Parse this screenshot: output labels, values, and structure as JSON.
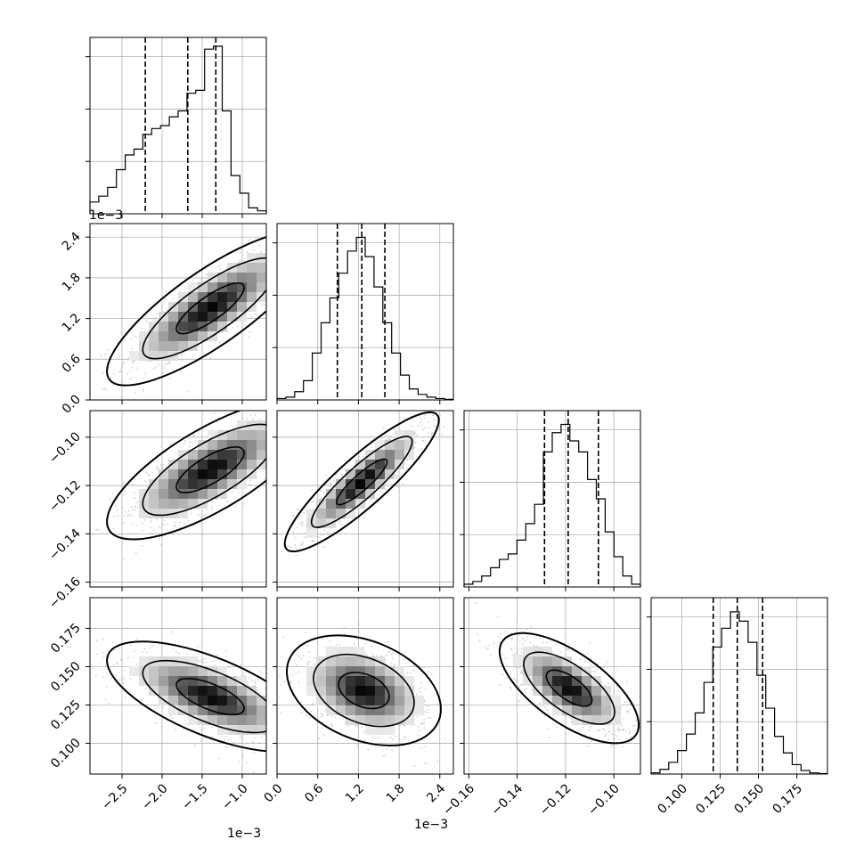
{
  "figure": {
    "offset_label_1": "1e−3",
    "offset_label_2": "1e−3",
    "offset_label_3": "1e−3"
  },
  "chart_data": {
    "type": "corner",
    "parameters": [
      {
        "index": 0,
        "range": [
          -0.0029,
          -0.0007
        ],
        "tick_values": [
          -0.0025,
          -0.002,
          -0.0015,
          -0.001
        ],
        "tick_labels": [
          "−2.5",
          "−2.0",
          "−1.5",
          "−1.0"
        ],
        "offset": "1e−3",
        "quantiles": [
          -0.00221,
          -0.00168,
          -0.00133
        ],
        "histogram": {
          "bin_edges": [
            -0.0029,
            -0.00279,
            -0.00268,
            -0.00257,
            -0.00246,
            -0.00235,
            -0.00224,
            -0.00213,
            -0.00202,
            -0.00191,
            -0.0018,
            -0.00169,
            -0.00158,
            -0.00147,
            -0.00136,
            -0.00125,
            -0.00114,
            -0.00103,
            -0.00092,
            -0.00081,
            -0.0007
          ],
          "counts": [
            40,
            60,
            90,
            150,
            200,
            220,
            270,
            290,
            300,
            330,
            350,
            410,
            420,
            560,
            570,
            350,
            130,
            70,
            20,
            10
          ],
          "ylim": [
            0,
            600
          ]
        }
      },
      {
        "index": 1,
        "range": [
          0.0,
          0.0026
        ],
        "tick_values": [
          0.0,
          0.0006,
          0.0012,
          0.0018,
          0.0024
        ],
        "tick_labels": [
          "0.0",
          "0.6",
          "1.2",
          "1.8",
          "2.4"
        ],
        "offset": "1e−3",
        "quantiles": [
          0.00089,
          0.00125,
          0.00159
        ],
        "histogram": {
          "bin_edges": [
            0.0,
            0.00013,
            0.00026,
            0.00039,
            0.00052,
            0.00065,
            0.00078,
            0.00091,
            0.00104,
            0.00117,
            0.0013,
            0.00143,
            0.00156,
            0.00169,
            0.00182,
            0.00195,
            0.00208,
            0.00221,
            0.00234,
            0.00247,
            0.0026
          ],
          "counts": [
            5,
            10,
            30,
            70,
            170,
            280,
            370,
            460,
            540,
            590,
            520,
            410,
            280,
            170,
            90,
            40,
            20,
            10,
            5,
            2
          ],
          "ylim": [
            0,
            640
          ]
        }
      },
      {
        "index": 2,
        "range": [
          -0.162,
          -0.089
        ],
        "tick_values": [
          -0.16,
          -0.14,
          -0.12,
          -0.1
        ],
        "tick_labels": [
          "−0.16",
          "−0.14",
          "−0.12",
          "−0.10"
        ],
        "quantiles": [
          -0.1287,
          -0.1189,
          -0.1064
        ],
        "histogram": {
          "bin_edges": [
            -0.162,
            -0.15835,
            -0.1547,
            -0.15105,
            -0.1474,
            -0.14375,
            -0.1401,
            -0.13645,
            -0.1328,
            -0.12915,
            -0.1255,
            -0.12185,
            -0.1182,
            -0.11455,
            -0.1109,
            -0.10725,
            -0.1036,
            -0.09995,
            -0.0963,
            -0.09265,
            -0.089
          ],
          "counts": [
            10,
            20,
            40,
            70,
            100,
            120,
            170,
            230,
            300,
            490,
            560,
            590,
            530,
            490,
            390,
            320,
            200,
            110,
            40,
            10
          ],
          "ylim": [
            0,
            640
          ]
        }
      },
      {
        "index": 3,
        "range": [
          0.08,
          0.195
        ],
        "tick_values": [
          0.1,
          0.125,
          0.15,
          0.175
        ],
        "tick_labels": [
          "0.100",
          "0.125",
          "0.150",
          "0.175"
        ],
        "quantiles": [
          0.1205,
          0.1362,
          0.1527
        ],
        "histogram": {
          "bin_edges": [
            0.08,
            0.08575,
            0.0915,
            0.09725,
            0.103,
            0.10875,
            0.1145,
            0.12025,
            0.126,
            0.13175,
            0.1375,
            0.14325,
            0.149,
            0.15475,
            0.1605,
            0.16625,
            0.172,
            0.17775,
            0.1835,
            0.18925,
            0.195
          ],
          "counts": [
            5,
            20,
            50,
            100,
            170,
            260,
            390,
            540,
            620,
            690,
            650,
            560,
            420,
            280,
            160,
            90,
            40,
            15,
            5,
            2
          ],
          "ylim": [
            0,
            750
          ]
        }
      }
    ],
    "pairs": [
      {
        "x": 0,
        "y": 1,
        "peak": [
          -0.0014,
          0.00135
        ],
        "cov": [
          [
            1.8e-07,
            1.3e-07
          ],
          [
            1.3e-07,
            1.4e-07
          ]
        ]
      },
      {
        "x": 0,
        "y": 2,
        "peak": [
          -0.0014,
          -0.1135
        ],
        "cov": [
          [
            1.8e-07,
            3e-06
          ],
          [
            3e-06,
            9e-05
          ]
        ]
      },
      {
        "x": 1,
        "y": 2,
        "peak": [
          0.00125,
          -0.1185
        ],
        "cov": [
          [
            1.4e-07,
            3.15e-06
          ],
          [
            3.15e-06,
            9e-05
          ]
        ]
      },
      {
        "x": 0,
        "y": 3,
        "peak": [
          -0.0014,
          0.1305
        ],
        "cov": [
          [
            1.8e-07,
            -3.3e-06
          ],
          [
            -3.3e-06,
            0.00014
          ]
        ]
      },
      {
        "x": 1,
        "y": 3,
        "peak": [
          0.00128,
          0.1345
        ],
        "cov": [
          [
            1.4e-07,
            -1.5e-06
          ],
          [
            -1.5e-06,
            0.00014
          ]
        ]
      },
      {
        "x": 2,
        "y": 3,
        "peak": [
          -0.1185,
          0.136
        ],
        "cov": [
          [
            9e-05,
            -7.5e-05
          ],
          [
            -7.5e-05,
            0.00014
          ]
        ]
      }
    ],
    "contour_levels": [
      0.39,
      0.86,
      0.99
    ],
    "grid": true
  }
}
